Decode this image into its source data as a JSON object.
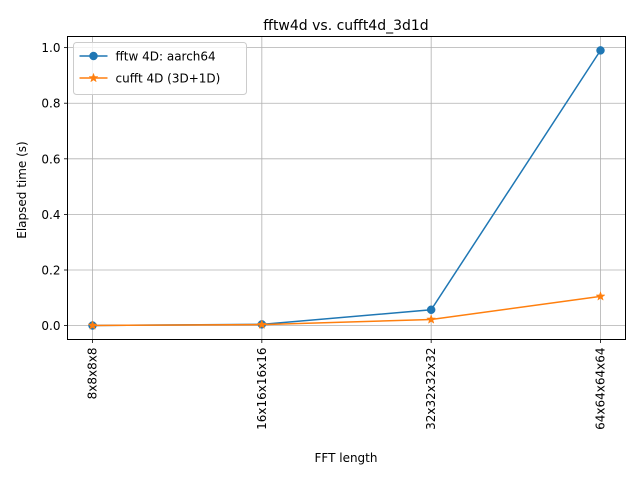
{
  "chart_data": {
    "type": "line",
    "title": "fftw4d vs. cufft4d_3d1d",
    "xlabel": "FFT length",
    "ylabel": "Elapsed time (s)",
    "categories": [
      "8x8x8x8",
      "16x16x16x16",
      "32x32x32x32",
      "64x64x64x64"
    ],
    "ylim": [
      -0.05,
      1.04
    ],
    "yticks": [
      0.0,
      0.2,
      0.4,
      0.6,
      0.8,
      1.0
    ],
    "ytick_labels": [
      "0.0",
      "0.2",
      "0.4",
      "0.6",
      "0.8",
      "1.0"
    ],
    "grid": true,
    "legend_position": "upper-left",
    "series": [
      {
        "name": "fftw 4D: aarch64",
        "marker": "circle",
        "color": "#1f77b4",
        "values": [
          0.0003,
          0.0045,
          0.057,
          0.99
        ]
      },
      {
        "name": "cufft 4D (3D+1D)",
        "marker": "star",
        "color": "#ff7f0e",
        "values": [
          0.0005,
          0.0035,
          0.022,
          0.105
        ]
      }
    ]
  }
}
